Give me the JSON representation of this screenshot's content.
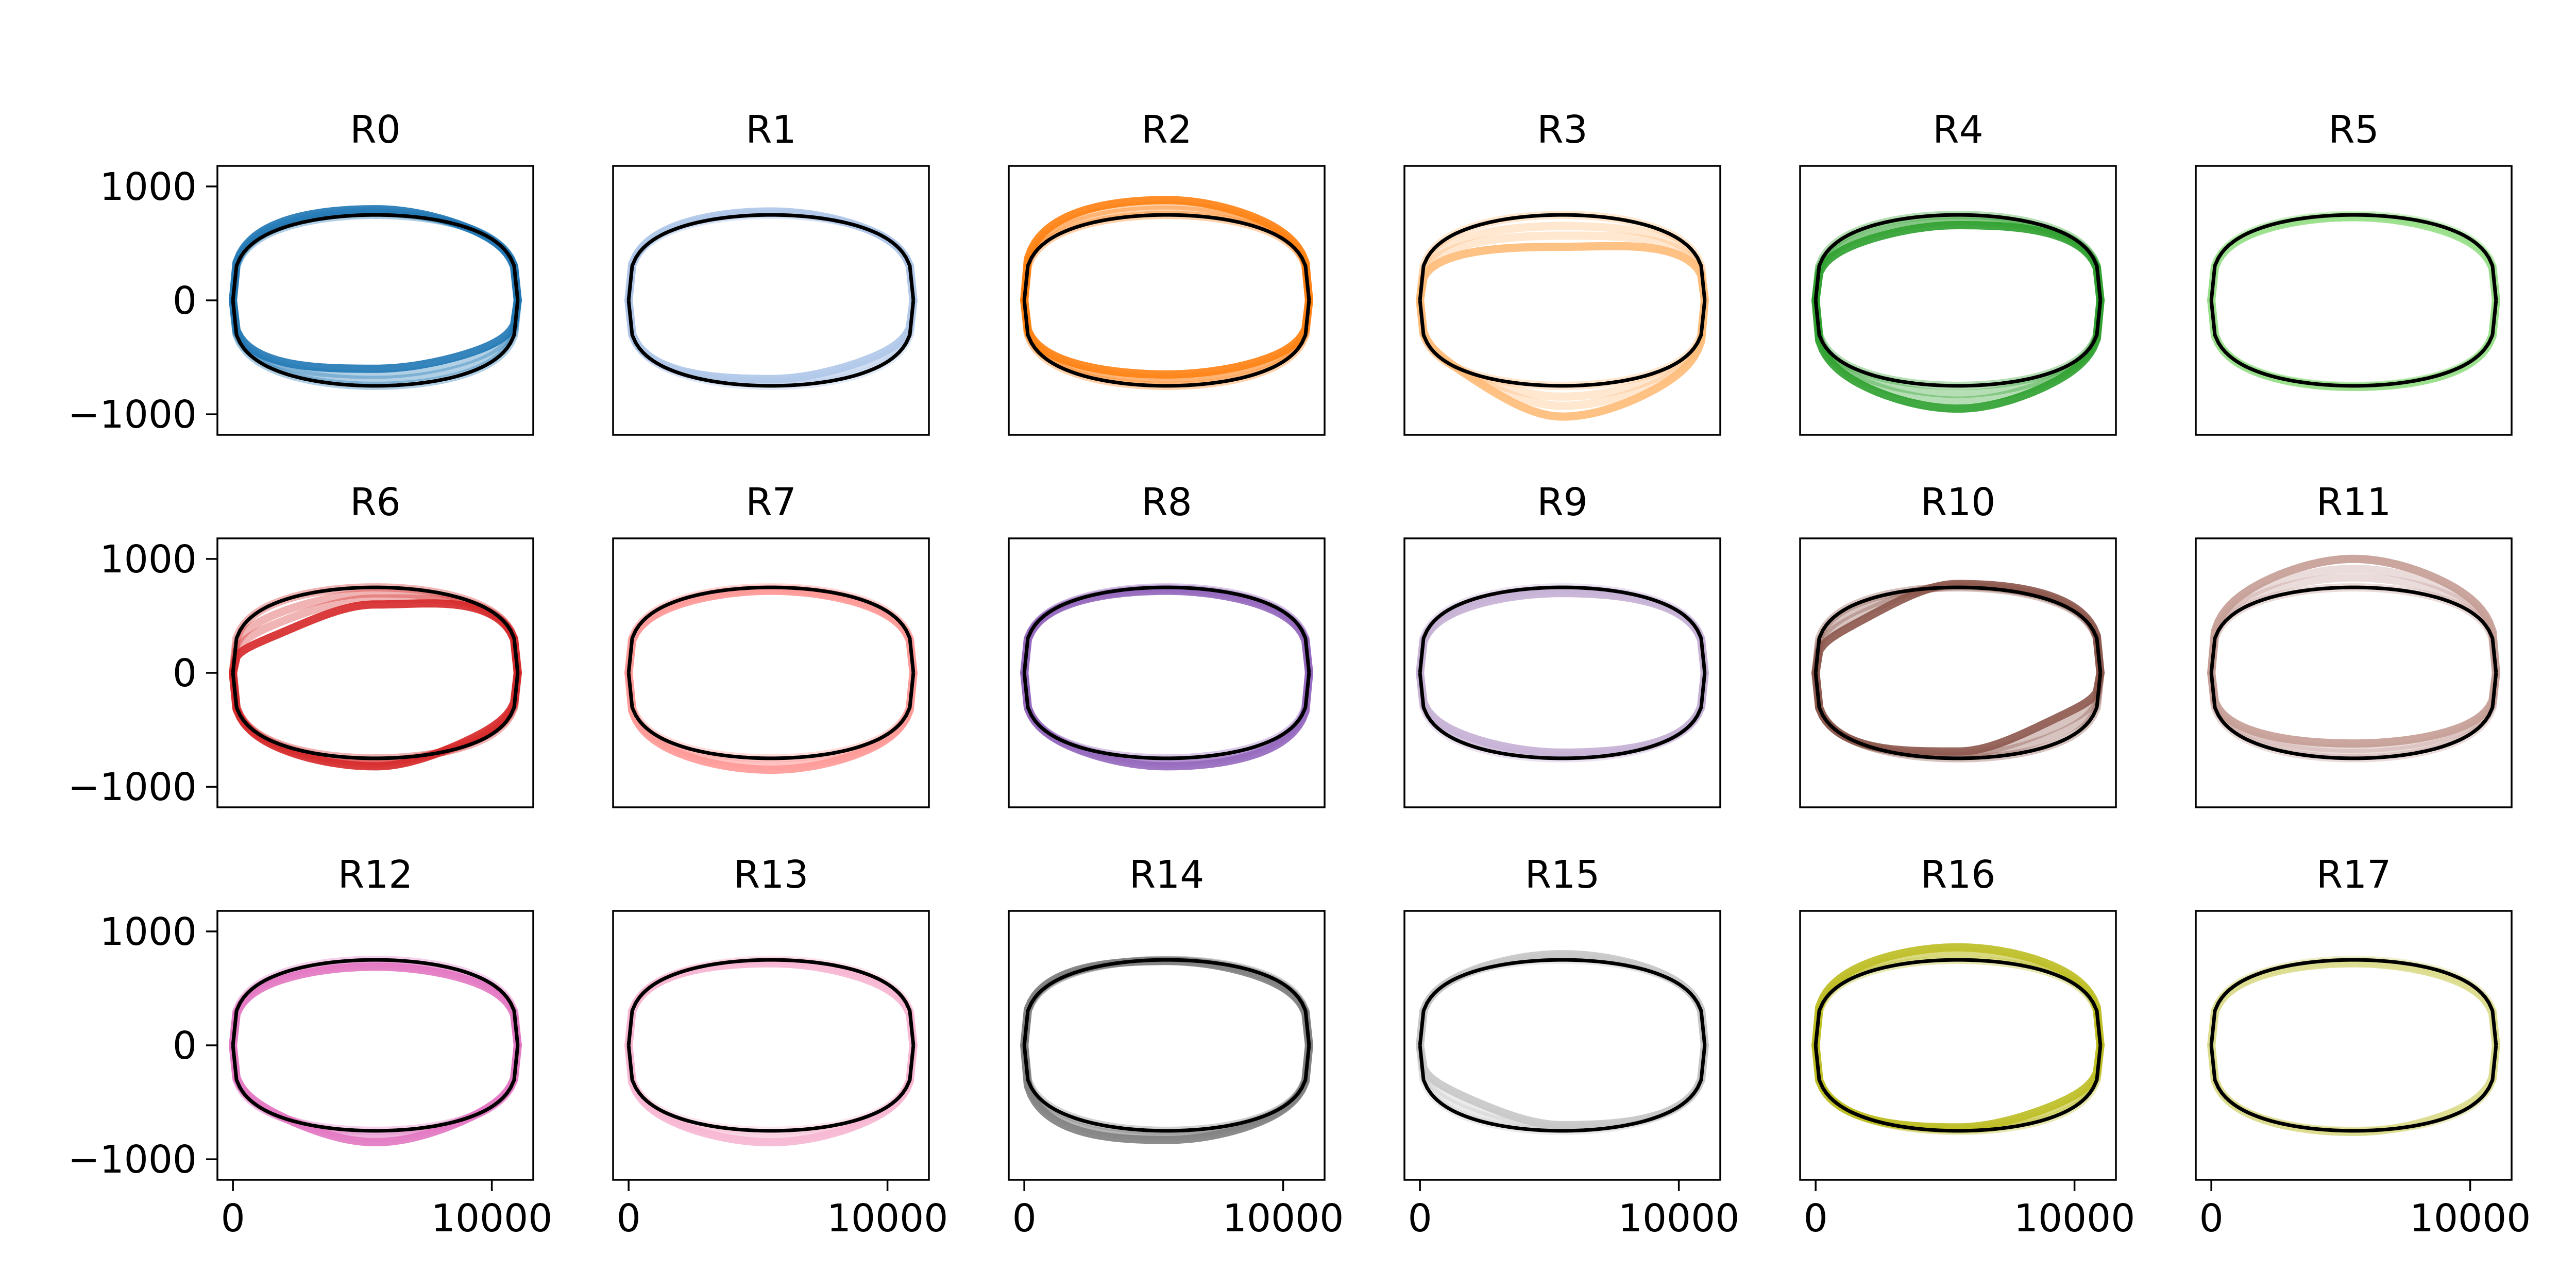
{
  "chart_data": {
    "type": "line",
    "layout": {
      "rows": 3,
      "cols": 6
    },
    "x_ticks": [
      0,
      10000
    ],
    "y_ticks": [
      -1000,
      0,
      1000
    ],
    "x_tick_labels": [
      "0",
      "10000"
    ],
    "y_tick_labels": [
      "−1000",
      "0",
      "1000"
    ],
    "xlim": [
      -600,
      11600
    ],
    "ylim": [
      -1180,
      1180
    ],
    "reference": {
      "color": "#000000",
      "x_extent": [
        0,
        11000
      ],
      "upper_plateau": 750,
      "lower_plateau": -750
    },
    "panels": [
      {
        "title": "R0",
        "color": "#1f77b4",
        "upper": [
          820,
          800,
          730
        ],
        "lower": [
          -650,
          -600,
          -530
        ]
      },
      {
        "title": "R1",
        "color": "#aec7e8",
        "upper": [
          780,
          780,
          740
        ],
        "lower": [
          -730,
          -690,
          -600
        ]
      },
      {
        "title": "R2",
        "color": "#ff7f0e",
        "upper": [
          900,
          880,
          820
        ],
        "lower": [
          -650,
          -650,
          -620
        ]
      },
      {
        "title": "R3",
        "color": "#ffbb78",
        "upper": [
          500,
          470,
          560
        ],
        "lower": [
          -700,
          -1020,
          -880
        ]
      },
      {
        "title": "R4",
        "color": "#2ca02c",
        "upper": [
          600,
          660,
          700
        ],
        "lower": [
          -870,
          -950,
          -830
        ]
      },
      {
        "title": "R5",
        "color": "#98df8a",
        "upper": [
          720,
          730,
          700
        ],
        "lower": [
          -760,
          -760,
          -770
        ]
      },
      {
        "title": "R6",
        "color": "#d62728",
        "upper": [
          350,
          600,
          720
        ],
        "lower": [
          -780,
          -820,
          -650
        ]
      },
      {
        "title": "R7",
        "color": "#ff9896",
        "upper": [
          700,
          720,
          700
        ],
        "lower": [
          -820,
          -850,
          -800
        ]
      },
      {
        "title": "R8",
        "color": "#9467bd",
        "upper": [
          730,
          720,
          700
        ],
        "lower": [
          -760,
          -820,
          -830
        ]
      },
      {
        "title": "R9",
        "color": "#c5b0d5",
        "upper": [
          680,
          700,
          720
        ],
        "lower": [
          -650,
          -700,
          -730
        ]
      },
      {
        "title": "R10",
        "color": "#8c564b",
        "upper": [
          480,
          780,
          800
        ],
        "lower": [
          -760,
          -690,
          -420
        ]
      },
      {
        "title": "R11",
        "color": "#c49c94",
        "upper": [
          900,
          1000,
          900
        ],
        "lower": [
          -630,
          -620,
          -610
        ]
      },
      {
        "title": "R12",
        "color": "#e377c2",
        "upper": [
          680,
          690,
          670
        ],
        "lower": [
          -700,
          -850,
          -720
        ]
      },
      {
        "title": "R13",
        "color": "#f7b6d2",
        "upper": [
          740,
          720,
          680
        ],
        "lower": [
          -800,
          -850,
          -780
        ]
      },
      {
        "title": "R14",
        "color": "#7f7f7f",
        "upper": [
          780,
          740,
          700
        ],
        "lower": [
          -880,
          -830,
          -780
        ]
      },
      {
        "title": "R15",
        "color": "#c7c7c7",
        "upper": [
          750,
          800,
          760
        ],
        "lower": [
          -500,
          -700,
          -740
        ]
      },
      {
        "title": "R16",
        "color": "#bcbd22",
        "upper": [
          830,
          860,
          820
        ],
        "lower": [
          -760,
          -720,
          -600
        ]
      },
      {
        "title": "R17",
        "color": "#dbdb8d",
        "upper": [
          720,
          720,
          700
        ],
        "lower": [
          -760,
          -760,
          -700
        ]
      }
    ]
  }
}
